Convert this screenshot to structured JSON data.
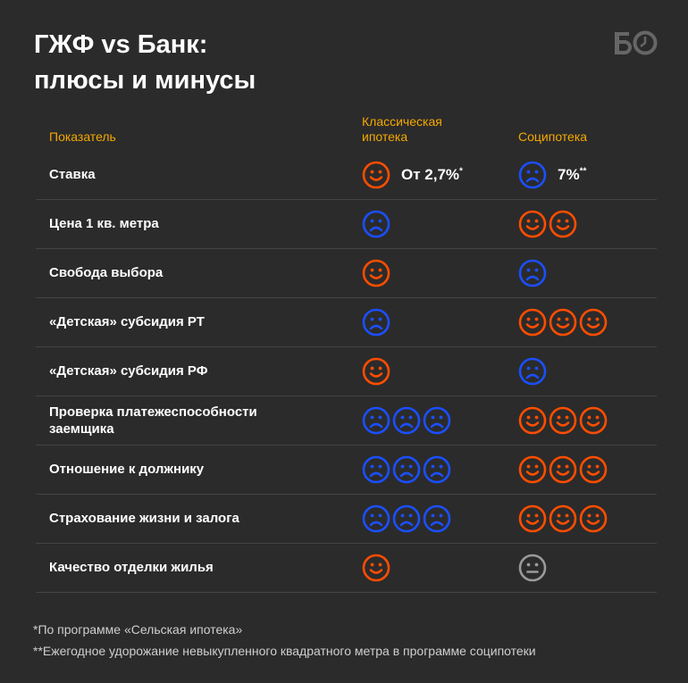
{
  "title_line1": "ГЖФ vs Банк:",
  "title_line2": "плюсы и минусы",
  "logo": "БО",
  "colors": {
    "positive": "#ff4d00",
    "negative": "#1b4fff",
    "neutral": "#9a9a9a",
    "header": "#f5a800",
    "background": "#2b2b2b"
  },
  "headers": {
    "indicator": "Показатель",
    "classic_line1": "Классическая",
    "classic_line2": "ипотека",
    "social": "Соципотека"
  },
  "rows": [
    {
      "label": "Ставка",
      "classic": {
        "face": "smile",
        "count": 1,
        "value": "От 2,7%",
        "mark": "*"
      },
      "social": {
        "face": "sad",
        "count": 1,
        "value": "7%",
        "mark": "**"
      }
    },
    {
      "label": "Цена 1 кв. метра",
      "classic": {
        "face": "sad",
        "count": 1
      },
      "social": {
        "face": "smile",
        "count": 2
      }
    },
    {
      "label": "Свобода выбора",
      "classic": {
        "face": "smile",
        "count": 1
      },
      "social": {
        "face": "sad",
        "count": 1
      }
    },
    {
      "label": "«Детская» субсидия РТ",
      "classic": {
        "face": "sad",
        "count": 1
      },
      "social": {
        "face": "smile",
        "count": 3
      }
    },
    {
      "label": "«Детская» субсидия РФ",
      "classic": {
        "face": "smile",
        "count": 1
      },
      "social": {
        "face": "sad",
        "count": 1
      }
    },
    {
      "label": "Проверка платежеспособности заемщика",
      "classic": {
        "face": "sad",
        "count": 3
      },
      "social": {
        "face": "smile",
        "count": 3
      }
    },
    {
      "label": "Отношение к должнику",
      "classic": {
        "face": "sad",
        "count": 3
      },
      "social": {
        "face": "smile",
        "count": 3
      }
    },
    {
      "label": "Страхование жизни и залога",
      "classic": {
        "face": "sad",
        "count": 3
      },
      "social": {
        "face": "smile",
        "count": 3
      }
    },
    {
      "label": "Качество отделки жилья",
      "classic": {
        "face": "smile",
        "count": 1
      },
      "social": {
        "face": "neutral",
        "count": 1
      }
    }
  ],
  "footnotes": [
    "*По программе «Сельская ипотека»",
    "**Ежегодное удорожание невыкупленного квадратного метра в программе соципотеки"
  ]
}
